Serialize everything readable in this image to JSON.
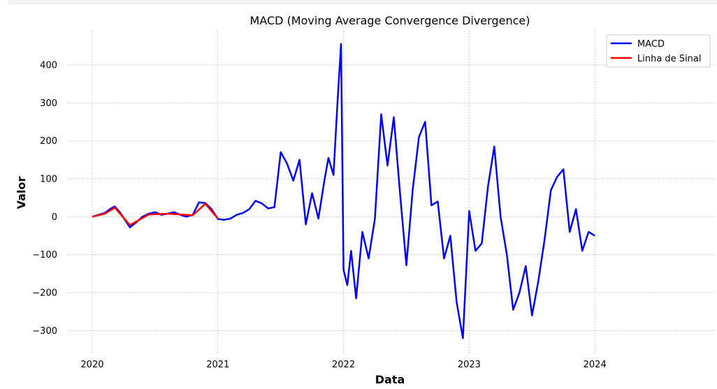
{
  "chart_data": {
    "type": "line",
    "title": "MACD (Moving Average Convergence Divergence)",
    "xlabel": "Data",
    "ylabel": "Valor",
    "xlim": [
      2019.8,
      2024.95
    ],
    "ylim": [
      -360,
      490
    ],
    "x_ticks": [
      2020,
      2021,
      2022,
      2023,
      2024
    ],
    "x_tick_labels": [
      "2020",
      "2021",
      "2022",
      "2023",
      "2024"
    ],
    "y_ticks": [
      400,
      300,
      200,
      100,
      0,
      -100,
      -200,
      -300
    ],
    "y_tick_labels": [
      "400",
      "300",
      "200",
      "100",
      "0",
      "−100",
      "−200",
      "−300"
    ],
    "grid": true,
    "legend_position": "top-right",
    "series": [
      {
        "name": "MACD",
        "color": "#0000ff",
        "points": [
          [
            2020.0,
            0
          ],
          [
            2020.05,
            5
          ],
          [
            2020.1,
            10
          ],
          [
            2020.15,
            22
          ],
          [
            2020.18,
            27
          ],
          [
            2020.22,
            12
          ],
          [
            2020.26,
            -8
          ],
          [
            2020.3,
            -28
          ],
          [
            2020.35,
            -15
          ],
          [
            2020.4,
            0
          ],
          [
            2020.45,
            8
          ],
          [
            2020.5,
            12
          ],
          [
            2020.55,
            5
          ],
          [
            2020.6,
            8
          ],
          [
            2020.65,
            12
          ],
          [
            2020.7,
            5
          ],
          [
            2020.75,
            0
          ],
          [
            2020.8,
            5
          ],
          [
            2020.85,
            38
          ],
          [
            2020.9,
            36
          ],
          [
            2020.95,
            20
          ],
          [
            2021.0,
            -6
          ],
          [
            2021.05,
            -8
          ],
          [
            2021.1,
            -5
          ],
          [
            2021.15,
            5
          ],
          [
            2021.2,
            10
          ],
          [
            2021.25,
            20
          ],
          [
            2021.3,
            42
          ],
          [
            2021.35,
            35
          ],
          [
            2021.4,
            22
          ],
          [
            2021.45,
            25
          ],
          [
            2021.5,
            170
          ],
          [
            2021.55,
            140
          ],
          [
            2021.6,
            95
          ],
          [
            2021.65,
            150
          ],
          [
            2021.7,
            -20
          ],
          [
            2021.75,
            62
          ],
          [
            2021.8,
            -5
          ],
          [
            2021.85,
            100
          ],
          [
            2021.88,
            155
          ],
          [
            2021.92,
            110
          ],
          [
            2021.95,
            290
          ],
          [
            2021.98,
            455
          ],
          [
            2022.0,
            -140
          ],
          [
            2022.03,
            -180
          ],
          [
            2022.06,
            -90
          ],
          [
            2022.1,
            -215
          ],
          [
            2022.15,
            -40
          ],
          [
            2022.2,
            -110
          ],
          [
            2022.25,
            -5
          ],
          [
            2022.3,
            270
          ],
          [
            2022.35,
            135
          ],
          [
            2022.4,
            262
          ],
          [
            2022.45,
            60
          ],
          [
            2022.5,
            -128
          ],
          [
            2022.55,
            70
          ],
          [
            2022.6,
            210
          ],
          [
            2022.65,
            250
          ],
          [
            2022.7,
            30
          ],
          [
            2022.75,
            40
          ],
          [
            2022.8,
            -110
          ],
          [
            2022.85,
            -50
          ],
          [
            2022.9,
            -225
          ],
          [
            2022.95,
            -320
          ],
          [
            2023.0,
            15
          ],
          [
            2023.05,
            -90
          ],
          [
            2023.1,
            -70
          ],
          [
            2023.15,
            80
          ],
          [
            2023.2,
            185
          ],
          [
            2023.25,
            0
          ],
          [
            2023.3,
            -100
          ],
          [
            2023.35,
            -245
          ],
          [
            2023.4,
            -200
          ],
          [
            2023.45,
            -130
          ],
          [
            2023.5,
            -260
          ],
          [
            2023.55,
            -170
          ],
          [
            2023.6,
            -60
          ],
          [
            2023.65,
            70
          ],
          [
            2023.7,
            105
          ],
          [
            2023.75,
            125
          ],
          [
            2023.8,
            -40
          ],
          [
            2023.85,
            20
          ],
          [
            2023.9,
            -90
          ],
          [
            2023.95,
            -40
          ],
          [
            2024.0,
            -50
          ]
        ]
      },
      {
        "name": "Linha de Sinal",
        "color": "#ff0000",
        "points": [
          [
            2020.0,
            0
          ],
          [
            2020.1,
            8
          ],
          [
            2020.18,
            24
          ],
          [
            2020.3,
            -22
          ],
          [
            2020.45,
            6
          ],
          [
            2020.6,
            8
          ],
          [
            2020.8,
            4
          ],
          [
            2020.9,
            34
          ],
          [
            2021.0,
            -5
          ]
        ]
      }
    ]
  }
}
